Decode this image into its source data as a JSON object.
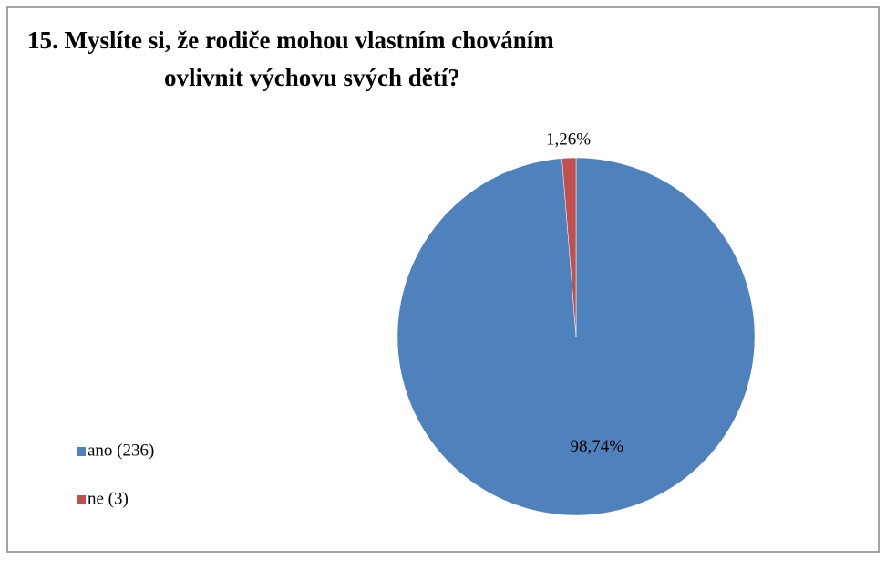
{
  "chart_data": {
    "type": "pie",
    "title": [
      "15. Myslíte si, že rodiče mohou vlastním chováním",
      "ovlivnit výchovu svých dětí?"
    ],
    "categories": [
      "ano (236)",
      "ne (3)"
    ],
    "values": [
      98.74,
      1.26
    ],
    "value_labels": [
      "98,74%",
      "1,26%"
    ],
    "colors": [
      "#4f81bd",
      "#c0504d"
    ],
    "legend": "left"
  }
}
